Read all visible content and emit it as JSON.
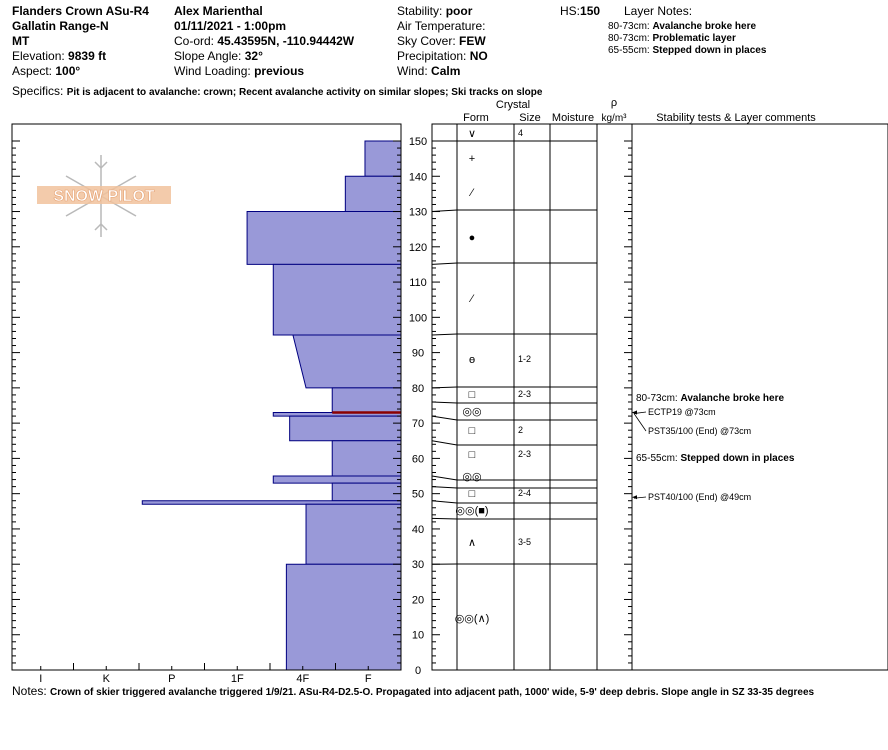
{
  "header": {
    "title": "Flanders Crown ASu-R4",
    "range": "Gallatin Range-N",
    "state": "MT",
    "elevation_label": "Elevation:",
    "elevation_value": "9839 ft",
    "aspect_label": "Aspect:",
    "aspect_value": "100°",
    "observer": "Alex Marienthal",
    "datetime": "01/11/2021 - 1:00pm",
    "coord_label": "Co-ord:",
    "coord_value": "45.43595N, -110.94442W",
    "slope_label": "Slope Angle:",
    "slope_value": "32°",
    "wind_loading_label": "Wind Loading:",
    "wind_loading_value": "previous",
    "stability_label": "Stability:",
    "stability_value": "poor",
    "air_temp_label": "Air Temperature:",
    "sky_label": "Sky Cover:",
    "sky_value": "FEW",
    "precip_label": "Precipitation:",
    "precip_value": "NO",
    "wind_label": "Wind:",
    "wind_value": "Calm",
    "hs_label": "HS:",
    "hs_value": "150",
    "layer_notes_title": "Layer Notes:",
    "layer_notes": [
      {
        "range": "80-73cm:",
        "text": "Avalanche broke here"
      },
      {
        "range": "80-73cm:",
        "text": "Problematic layer"
      },
      {
        "range": "65-55cm:",
        "text": "Stepped down in places"
      }
    ],
    "specifics_label": "Specifics:",
    "specifics_value": "Pit is adjacent to avalanche: crown;  Recent avalanche activity on similar slopes;  Ski tracks on slope"
  },
  "logo_text": "SNOW PILOT",
  "columns": {
    "crystal": "Crystal",
    "form": "Form",
    "size": "Size",
    "moisture": "Moisture",
    "rho": "ρ",
    "density_unit": "kg/m³",
    "comments": "Stability tests & Layer comments"
  },
  "notes_label": "Notes:",
  "notes_value": "Crown of skier triggered avalanche triggered 1/9/21. ASu-R4-D2.5-O. Propagated into adjacent path, 1000' wide, 5-9' deep debris. Slope angle in SZ 33-35 degrees",
  "colors": {
    "profile_fill": "#9999d8",
    "profile_stroke": "#000080",
    "problem_line": "#8b0000",
    "logo": "#f1c29c"
  },
  "chart_data": {
    "type": "snow-profile",
    "height_axis": {
      "min": 0,
      "max": 150,
      "ticks": [
        0,
        10,
        20,
        30,
        40,
        50,
        60,
        70,
        80,
        90,
        100,
        110,
        120,
        130,
        140,
        150
      ]
    },
    "hardness_scale": [
      "I",
      "K",
      "P",
      "1F",
      "4F",
      "F"
    ],
    "hardness_profile": [
      {
        "top": 150,
        "bottom": 140,
        "hardness": 0.55
      },
      {
        "top": 140,
        "bottom": 130,
        "hardness": 0.85
      },
      {
        "top": 130,
        "bottom": 115,
        "hardness": 2.35
      },
      {
        "top": 115,
        "bottom": 95,
        "hardness": 1.95
      },
      {
        "top": 95,
        "bottom": 80,
        "hardness_top": 1.65,
        "hardness_bottom": 1.45
      },
      {
        "top": 80,
        "bottom": 73,
        "hardness": 1.05
      },
      {
        "top": 73,
        "bottom": 72,
        "hardness": 1.95
      },
      {
        "top": 72,
        "bottom": 65,
        "hardness": 1.7
      },
      {
        "top": 65,
        "bottom": 55,
        "hardness": 1.05
      },
      {
        "top": 55,
        "bottom": 53,
        "hardness": 1.95
      },
      {
        "top": 53,
        "bottom": 48,
        "hardness": 1.05
      },
      {
        "top": 48,
        "bottom": 47,
        "hardness": 3.95
      },
      {
        "top": 47,
        "bottom": 30,
        "hardness": 1.45
      },
      {
        "top": 30,
        "bottom": 0,
        "hardness": 1.75
      }
    ],
    "problem_layer_height": 73,
    "layer_boundaries": [
      150,
      130,
      115,
      95,
      80,
      76,
      72,
      65,
      55,
      52,
      48,
      43,
      30
    ],
    "crystals": [
      {
        "height": 150,
        "form": "∨",
        "size": "4"
      },
      {
        "height": 144,
        "form": "+",
        "size": ""
      },
      {
        "height": 135,
        "form": "⁄",
        "size": ""
      },
      {
        "height": 122,
        "form": "●",
        "size": ""
      },
      {
        "height": 105,
        "form": "⁄",
        "size": ""
      },
      {
        "height": 88,
        "form": "ө",
        "size": "1-2"
      },
      {
        "height": 78,
        "form": "□",
        "size": "2-3"
      },
      {
        "height": 74,
        "form": "◎◎",
        "size": ""
      },
      {
        "height": 69,
        "form": "□",
        "size": "2"
      },
      {
        "height": 60,
        "form": "□",
        "size": "2-3"
      },
      {
        "height": 54,
        "form": "◎◎",
        "size": ""
      },
      {
        "height": 50,
        "form": "□",
        "size": "2-4"
      },
      {
        "height": 45,
        "form": "◎◎(■)",
        "size": ""
      },
      {
        "height": 37,
        "form": "∧",
        "size": "3-5"
      },
      {
        "height": 15,
        "form": "◎◎(∧)",
        "size": ""
      }
    ],
    "stability_tests": [
      {
        "height": 73,
        "label": "ECTP19 @73cm"
      },
      {
        "height": 73,
        "label": "PST35/100 (End) @73cm"
      },
      {
        "height": 49,
        "label": "PST40/100 (End) @49cm"
      }
    ],
    "layer_comments": [
      {
        "height": 80,
        "range": "80-73cm:",
        "text": "Avalanche broke here"
      },
      {
        "height": 65,
        "range": "65-55cm:",
        "text": "Stepped down in places"
      }
    ]
  }
}
